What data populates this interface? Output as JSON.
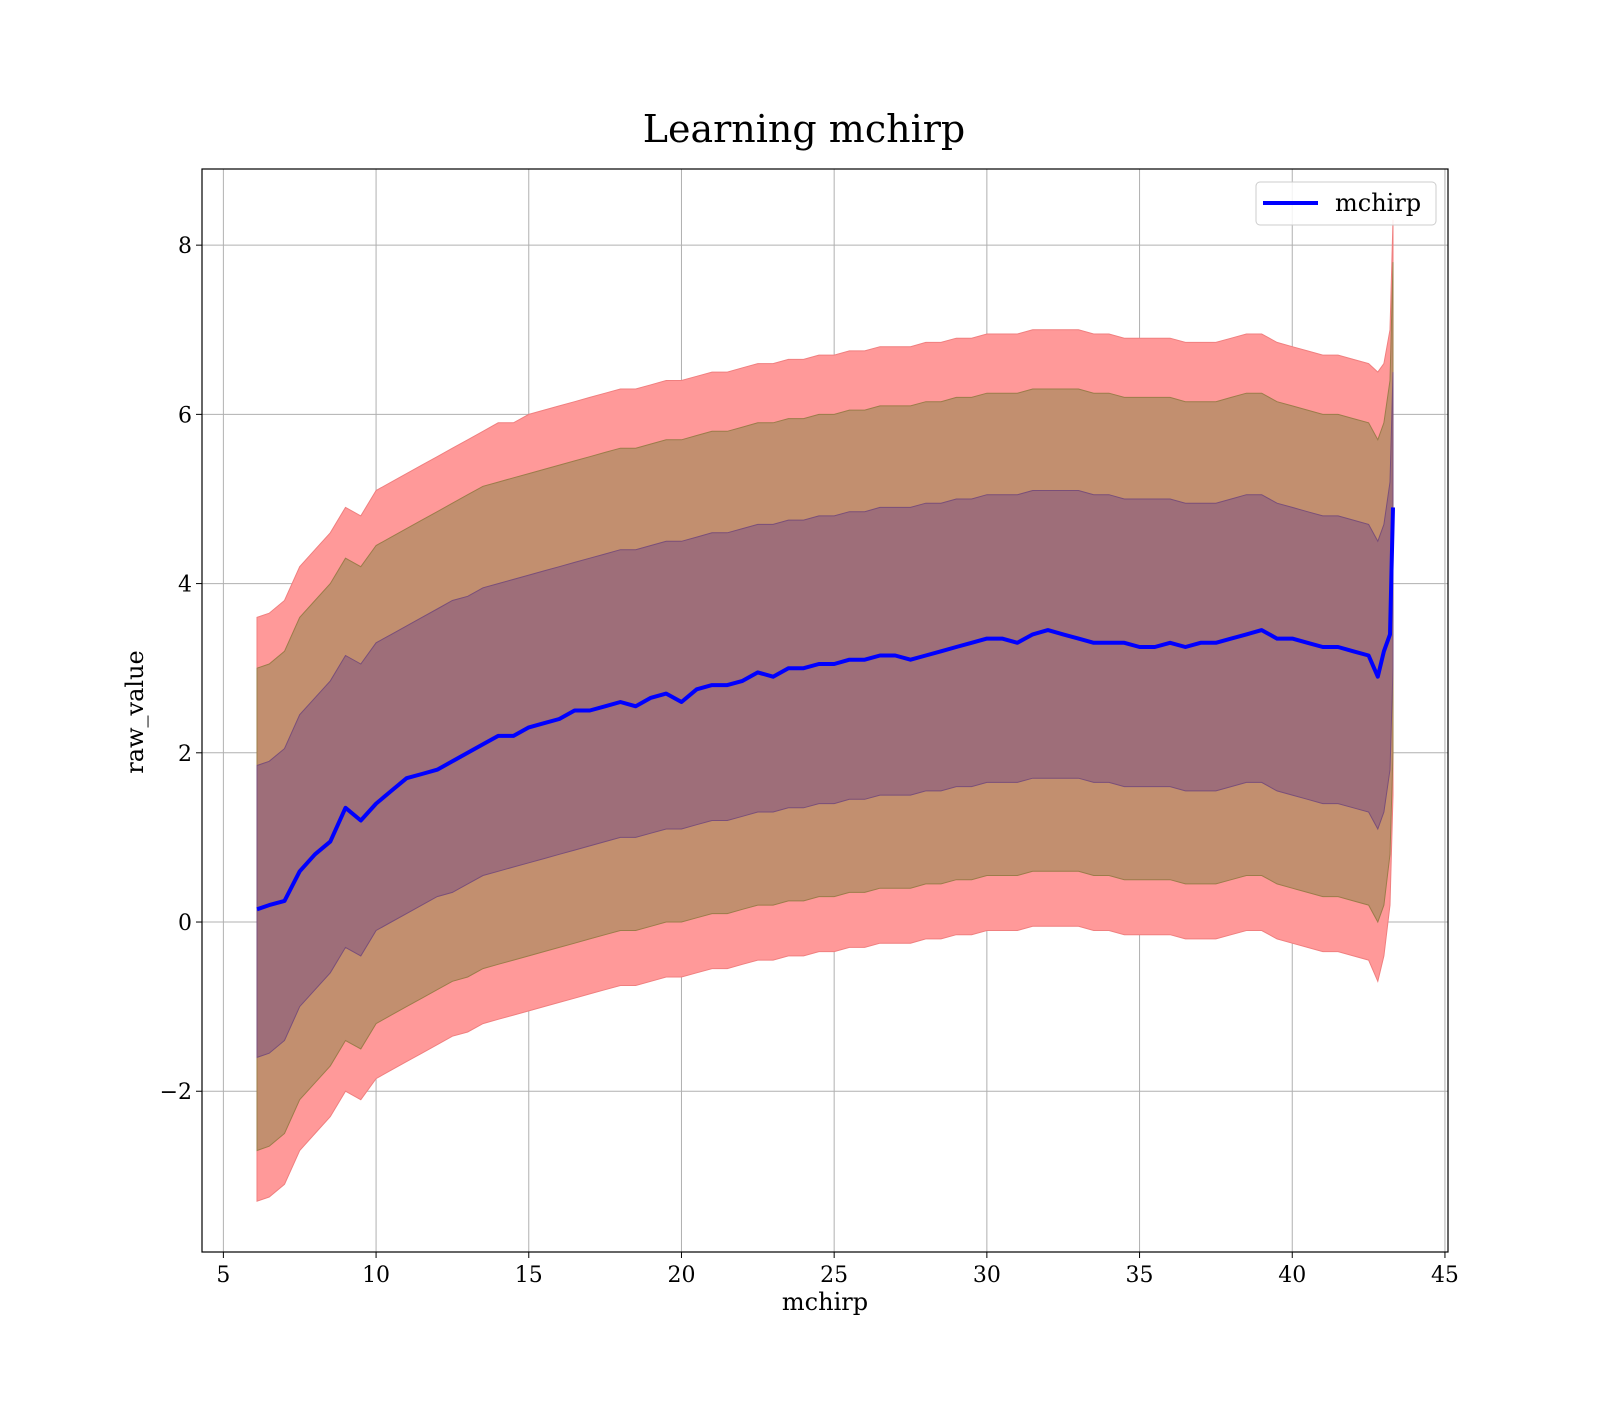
{
  "chart_data": {
    "type": "line",
    "title": "Learning mchirp",
    "xlabel": "mchirp",
    "ylabel": "raw_value",
    "xlim": [
      4.3,
      45.1
    ],
    "ylim": [
      -3.9,
      8.9
    ],
    "xticks": [
      5,
      10,
      15,
      20,
      25,
      30,
      35,
      40,
      45
    ],
    "yticks": [
      -2,
      0,
      2,
      4,
      6,
      8
    ],
    "ytick_labels": [
      "−2",
      "0",
      "2",
      "4",
      "6",
      "8"
    ],
    "grid": true,
    "legend": {
      "placement": "top-right",
      "entries": [
        {
          "label": "mchirp",
          "color": "#0000ff"
        }
      ]
    },
    "colors": {
      "line": "#0000ff",
      "band_3sigma": "#ff9999",
      "band_2sigma": "#c28f6f",
      "band_1sigma": "#9e6e79"
    },
    "x": [
      6.1,
      6.5,
      7,
      7.5,
      8,
      8.5,
      9,
      9.5,
      10,
      10.5,
      11,
      11.5,
      12,
      12.5,
      13,
      13.5,
      14,
      14.5,
      15,
      15.5,
      16,
      16.5,
      17,
      17.5,
      18,
      18.5,
      19,
      19.5,
      20,
      20.5,
      21,
      21.5,
      22,
      22.5,
      23,
      23.5,
      24,
      24.5,
      25,
      25.5,
      26,
      26.5,
      27,
      27.5,
      28,
      28.5,
      29,
      29.5,
      30,
      30.5,
      31,
      31.5,
      32,
      32.5,
      33,
      33.5,
      34,
      34.5,
      35,
      35.5,
      36,
      36.5,
      37,
      37.5,
      38,
      38.5,
      39,
      39.5,
      40,
      40.5,
      41,
      41.5,
      42,
      42.5,
      42.8,
      43.0,
      43.2,
      43.3
    ],
    "series": [
      {
        "name": "mchirp",
        "values": [
          0.15,
          0.2,
          0.25,
          0.6,
          0.8,
          0.95,
          1.35,
          1.2,
          1.4,
          1.55,
          1.7,
          1.75,
          1.8,
          1.9,
          2.0,
          2.1,
          2.2,
          2.2,
          2.3,
          2.35,
          2.4,
          2.5,
          2.5,
          2.55,
          2.6,
          2.55,
          2.65,
          2.7,
          2.6,
          2.75,
          2.8,
          2.8,
          2.85,
          2.95,
          2.9,
          3.0,
          3.0,
          3.05,
          3.05,
          3.1,
          3.1,
          3.15,
          3.15,
          3.1,
          3.15,
          3.2,
          3.25,
          3.3,
          3.35,
          3.35,
          3.3,
          3.4,
          3.45,
          3.4,
          3.35,
          3.3,
          3.3,
          3.3,
          3.25,
          3.25,
          3.3,
          3.25,
          3.3,
          3.3,
          3.35,
          3.4,
          3.45,
          3.35,
          3.35,
          3.3,
          3.25,
          3.25,
          3.2,
          3.15,
          2.9,
          3.2,
          3.4,
          4.9
        ]
      }
    ],
    "bands": {
      "upper_3sigma": [
        3.6,
        3.65,
        3.8,
        4.2,
        4.4,
        4.6,
        4.9,
        4.8,
        5.1,
        5.2,
        5.3,
        5.4,
        5.5,
        5.6,
        5.7,
        5.8,
        5.9,
        5.9,
        6.0,
        6.05,
        6.1,
        6.15,
        6.2,
        6.25,
        6.3,
        6.3,
        6.35,
        6.4,
        6.4,
        6.45,
        6.5,
        6.5,
        6.55,
        6.6,
        6.6,
        6.65,
        6.65,
        6.7,
        6.7,
        6.75,
        6.75,
        6.8,
        6.8,
        6.8,
        6.85,
        6.85,
        6.9,
        6.9,
        6.95,
        6.95,
        6.95,
        7.0,
        7.0,
        7.0,
        7.0,
        6.95,
        6.95,
        6.9,
        6.9,
        6.9,
        6.9,
        6.85,
        6.85,
        6.85,
        6.9,
        6.95,
        6.95,
        6.85,
        6.8,
        6.75,
        6.7,
        6.7,
        6.65,
        6.6,
        6.5,
        6.6,
        7.0,
        8.3
      ],
      "upper_2sigma": [
        3.0,
        3.05,
        3.2,
        3.6,
        3.8,
        4.0,
        4.3,
        4.2,
        4.45,
        4.55,
        4.65,
        4.75,
        4.85,
        4.95,
        5.05,
        5.15,
        5.2,
        5.25,
        5.3,
        5.35,
        5.4,
        5.45,
        5.5,
        5.55,
        5.6,
        5.6,
        5.65,
        5.7,
        5.7,
        5.75,
        5.8,
        5.8,
        5.85,
        5.9,
        5.9,
        5.95,
        5.95,
        6.0,
        6.0,
        6.05,
        6.05,
        6.1,
        6.1,
        6.1,
        6.15,
        6.15,
        6.2,
        6.2,
        6.25,
        6.25,
        6.25,
        6.3,
        6.3,
        6.3,
        6.3,
        6.25,
        6.25,
        6.2,
        6.2,
        6.2,
        6.2,
        6.15,
        6.15,
        6.15,
        6.2,
        6.25,
        6.25,
        6.15,
        6.1,
        6.05,
        6.0,
        6.0,
        5.95,
        5.9,
        5.7,
        5.9,
        6.4,
        7.8
      ],
      "upper_1sigma": [
        1.85,
        1.9,
        2.05,
        2.45,
        2.65,
        2.85,
        3.15,
        3.05,
        3.3,
        3.4,
        3.5,
        3.6,
        3.7,
        3.8,
        3.85,
        3.95,
        4.0,
        4.05,
        4.1,
        4.15,
        4.2,
        4.25,
        4.3,
        4.35,
        4.4,
        4.4,
        4.45,
        4.5,
        4.5,
        4.55,
        4.6,
        4.6,
        4.65,
        4.7,
        4.7,
        4.75,
        4.75,
        4.8,
        4.8,
        4.85,
        4.85,
        4.9,
        4.9,
        4.9,
        4.95,
        4.95,
        5.0,
        5.0,
        5.05,
        5.05,
        5.05,
        5.1,
        5.1,
        5.1,
        5.1,
        5.05,
        5.05,
        5.0,
        5.0,
        5.0,
        5.0,
        4.95,
        4.95,
        4.95,
        5.0,
        5.05,
        5.05,
        4.95,
        4.9,
        4.85,
        4.8,
        4.8,
        4.75,
        4.7,
        4.5,
        4.7,
        5.2,
        6.5
      ],
      "lower_1sigma": [
        -1.6,
        -1.55,
        -1.4,
        -1.0,
        -0.8,
        -0.6,
        -0.3,
        -0.4,
        -0.1,
        0.0,
        0.1,
        0.2,
        0.3,
        0.35,
        0.45,
        0.55,
        0.6,
        0.65,
        0.7,
        0.75,
        0.8,
        0.85,
        0.9,
        0.95,
        1.0,
        1.0,
        1.05,
        1.1,
        1.1,
        1.15,
        1.2,
        1.2,
        1.25,
        1.3,
        1.3,
        1.35,
        1.35,
        1.4,
        1.4,
        1.45,
        1.45,
        1.5,
        1.5,
        1.5,
        1.55,
        1.55,
        1.6,
        1.6,
        1.65,
        1.65,
        1.65,
        1.7,
        1.7,
        1.7,
        1.7,
        1.65,
        1.65,
        1.6,
        1.6,
        1.6,
        1.6,
        1.55,
        1.55,
        1.55,
        1.6,
        1.65,
        1.65,
        1.55,
        1.5,
        1.45,
        1.4,
        1.4,
        1.35,
        1.3,
        1.1,
        1.3,
        1.8,
        3.0
      ],
      "lower_2sigma": [
        -2.7,
        -2.65,
        -2.5,
        -2.1,
        -1.9,
        -1.7,
        -1.4,
        -1.5,
        -1.2,
        -1.1,
        -1.0,
        -0.9,
        -0.8,
        -0.7,
        -0.65,
        -0.55,
        -0.5,
        -0.45,
        -0.4,
        -0.35,
        -0.3,
        -0.25,
        -0.2,
        -0.15,
        -0.1,
        -0.1,
        -0.05,
        0.0,
        0.0,
        0.05,
        0.1,
        0.1,
        0.15,
        0.2,
        0.2,
        0.25,
        0.25,
        0.3,
        0.3,
        0.35,
        0.35,
        0.4,
        0.4,
        0.4,
        0.45,
        0.45,
        0.5,
        0.5,
        0.55,
        0.55,
        0.55,
        0.6,
        0.6,
        0.6,
        0.6,
        0.55,
        0.55,
        0.5,
        0.5,
        0.5,
        0.5,
        0.45,
        0.45,
        0.45,
        0.5,
        0.55,
        0.55,
        0.45,
        0.4,
        0.35,
        0.3,
        0.3,
        0.25,
        0.2,
        0.0,
        0.2,
        0.8,
        2.0
      ],
      "lower_3sigma": [
        -3.3,
        -3.25,
        -3.1,
        -2.7,
        -2.5,
        -2.3,
        -2.0,
        -2.1,
        -1.85,
        -1.75,
        -1.65,
        -1.55,
        -1.45,
        -1.35,
        -1.3,
        -1.2,
        -1.15,
        -1.1,
        -1.05,
        -1.0,
        -0.95,
        -0.9,
        -0.85,
        -0.8,
        -0.75,
        -0.75,
        -0.7,
        -0.65,
        -0.65,
        -0.6,
        -0.55,
        -0.55,
        -0.5,
        -0.45,
        -0.45,
        -0.4,
        -0.4,
        -0.35,
        -0.35,
        -0.3,
        -0.3,
        -0.25,
        -0.25,
        -0.25,
        -0.2,
        -0.2,
        -0.15,
        -0.15,
        -0.1,
        -0.1,
        -0.1,
        -0.05,
        -0.05,
        -0.05,
        -0.05,
        -0.1,
        -0.1,
        -0.15,
        -0.15,
        -0.15,
        -0.15,
        -0.2,
        -0.2,
        -0.2,
        -0.15,
        -0.1,
        -0.1,
        -0.2,
        -0.25,
        -0.3,
        -0.35,
        -0.35,
        -0.4,
        -0.45,
        -0.7,
        -0.4,
        0.2,
        1.5
      ]
    }
  }
}
